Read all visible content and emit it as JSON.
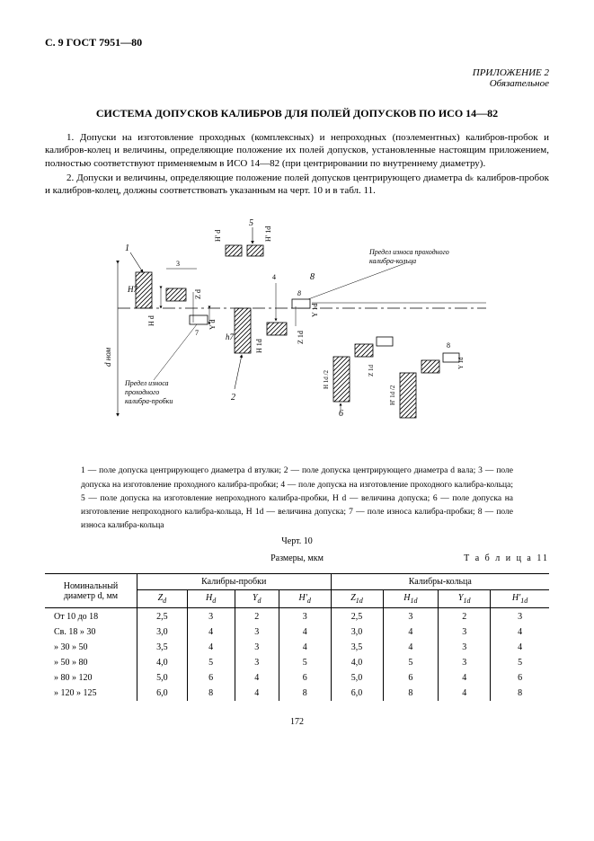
{
  "header": {
    "left": "С. 9 ГОСТ 7951—80",
    "app": "ПРИЛОЖЕНИЕ 2",
    "mand": "Обязательное"
  },
  "title": "СИСТЕМА ДОПУСКОВ КАЛИБРОВ ДЛЯ ПОЛЕЙ ДОПУСКОВ ПО ИСО 14—82",
  "p1": "1. Допуски на изготовление проходных (комплексных) и непроходных (поэлементных) калибров-пробок и калибров-колец и величины, определяющие положение их полей допусков, установленные настоящим приложением, полностью соответствуют применяемым в ИСО 14—82 (при центрировании по внутреннему диаметру).",
  "p2": "2. Допуски и величины, определяющие положение полей допусков центрирующего диаметра dₖ калибров-пробок и калибров-колец, должны соответствовать указанным на черт. 10 и в табл. 11.",
  "diagram": {
    "ref1": "1",
    "ref2": "2",
    "ref3": "3",
    "ref4": "4",
    "ref5": "5",
    "ref6": "6",
    "ref7": "7",
    "ref8": "8",
    "wear_plug": "Предел износа\nпроходного\nкалибра-пробки",
    "wear_ring": "Предел износа проходного\nкалибра-кольца",
    "dnom": "d ном",
    "H7": "H7",
    "h7": "h7",
    "Hd": "H d",
    "Hdp": "H' d",
    "H1d": "H 1d",
    "H1dp": "H' 1d",
    "Zd": "Z d",
    "Z1d": "Z 1d",
    "Yd": "Y d",
    "Y1d": "Y 1d"
  },
  "caption": "1 — поле допуска центрирующего диаметра d втулки; 2 — поле допуска центрирующего диаметра d вала; 3 — поле допуска на изготовление проходного калибра-пробки; 4 — поле допуска на изготовление проходного калибра-кольца; 5 — поле допуска на изготовление непроходного калибра-пробки, H d — величина допуска; 6 — поле допуска на изготовление непроходного калибра-кольца, H 1d — величина допуска; 7 — поле износа калибра-пробки; 8 — поле износа калибра-кольца",
  "chert": "Черт. 10",
  "units": "Размеры,  мкм",
  "table_label": "Т а б л и ц а  11",
  "thead": {
    "col0": "Номинальный диаметр d,  мм",
    "g1": "Калибры-пробки",
    "g2": "Калибры-кольца",
    "c1": "Z",
    "c2": "H",
    "c3": "Y",
    "c4": "H'",
    "c5": "Z",
    "c6": "H",
    "c7": "Y",
    "c8": "H'",
    "sd": "d",
    "s1d": "1d"
  },
  "rows": [
    {
      "d": "От 10  до  18",
      "z": "2,5",
      "h": "3",
      "y": "2",
      "hp": "3",
      "z1": "2,5",
      "h1": "3",
      "y1": "2",
      "hp1": "3"
    },
    {
      "d": "Св. 18   »   30",
      "z": "3,0",
      "h": "4",
      "y": "3",
      "hp": "4",
      "z1": "3,0",
      "h1": "4",
      "y1": "3",
      "hp1": "4"
    },
    {
      "d": "  »   30   »   50",
      "z": "3,5",
      "h": "4",
      "y": "3",
      "hp": "4",
      "z1": "3,5",
      "h1": "4",
      "y1": "3",
      "hp1": "4"
    },
    {
      "d": "  »   50   »   80",
      "z": "4,0",
      "h": "5",
      "y": "3",
      "hp": "5",
      "z1": "4,0",
      "h1": "5",
      "y1": "3",
      "hp1": "5"
    },
    {
      "d": "  »   80   »  120",
      "z": "5,0",
      "h": "6",
      "y": "4",
      "hp": "6",
      "z1": "5,0",
      "h1": "6",
      "y1": "4",
      "hp1": "6"
    },
    {
      "d": "  » 120   »  125",
      "z": "6,0",
      "h": "8",
      "y": "4",
      "hp": "8",
      "z1": "6,0",
      "h1": "8",
      "y1": "4",
      "hp1": "8"
    }
  ],
  "pagenum": "172",
  "style": {
    "hatch": "#000",
    "bg": "#fff",
    "line": "#000",
    "diag_w": 440,
    "diag_h": 260
  }
}
